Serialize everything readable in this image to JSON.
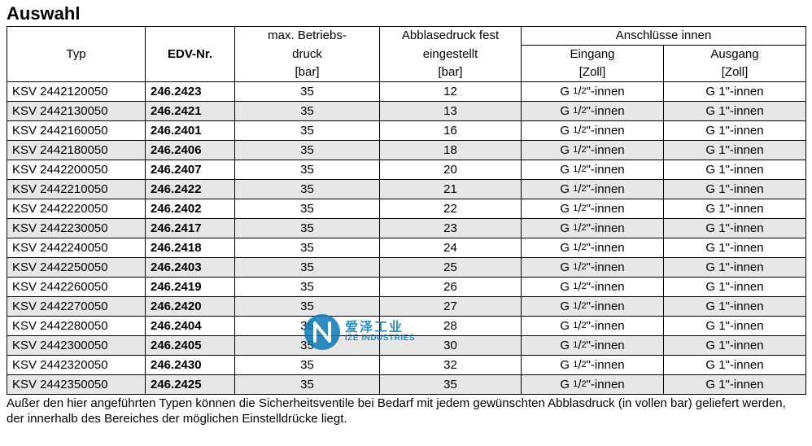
{
  "title": "Auswahl",
  "header": {
    "typ": "Typ",
    "edv": "EDV-Nr.",
    "druck_l1": "max. Betriebs-",
    "druck_l2": "druck",
    "abbl_l1": "Abblasedruck fest",
    "abbl_l2": "eingestellt",
    "ansch": "Anschlüsse innen",
    "eingang": "Eingang",
    "ausgang": "Ausgang",
    "unit_bar": "[bar]",
    "unit_zoll": "[Zoll]"
  },
  "conn_in_prefix": "G ",
  "conn_in_suffix": "\"-innen",
  "conn_out": "G 1\"-innen",
  "rows": [
    {
      "typ": "KSV 2442120050",
      "edv": "246.2423",
      "druck": "35",
      "abbl": "12"
    },
    {
      "typ": "KSV 2442130050",
      "edv": "246.2421",
      "druck": "35",
      "abbl": "13"
    },
    {
      "typ": "KSV 2442160050",
      "edv": "246.2401",
      "druck": "35",
      "abbl": "16"
    },
    {
      "typ": "KSV 2442180050",
      "edv": "246.2406",
      "druck": "35",
      "abbl": "18"
    },
    {
      "typ": "KSV 2442200050",
      "edv": "246.2407",
      "druck": "35",
      "abbl": "20"
    },
    {
      "typ": "KSV 2442210050",
      "edv": "246.2422",
      "druck": "35",
      "abbl": "21"
    },
    {
      "typ": "KSV 2442220050",
      "edv": "246.2402",
      "druck": "35",
      "abbl": "22"
    },
    {
      "typ": "KSV 2442230050",
      "edv": "246.2417",
      "druck": "35",
      "abbl": "23"
    },
    {
      "typ": "KSV 2442240050",
      "edv": "246.2418",
      "druck": "35",
      "abbl": "24"
    },
    {
      "typ": "KSV 2442250050",
      "edv": "246.2403",
      "druck": "35",
      "abbl": "25"
    },
    {
      "typ": "KSV 2442260050",
      "edv": "246.2419",
      "druck": "35",
      "abbl": "26"
    },
    {
      "typ": "KSV 2442270050",
      "edv": "246.2420",
      "druck": "35",
      "abbl": "27"
    },
    {
      "typ": "KSV 2442280050",
      "edv": "246.2404",
      "druck": "35",
      "abbl": "28"
    },
    {
      "typ": "KSV 2442300050",
      "edv": "246.2405",
      "druck": "35",
      "abbl": "30"
    },
    {
      "typ": "KSV 2442320050",
      "edv": "246.2430",
      "druck": "35",
      "abbl": "32"
    },
    {
      "typ": "KSV 2442350050",
      "edv": "246.2425",
      "druck": "35",
      "abbl": "35"
    }
  ],
  "footer": "Außer den hier angeführten Typen können die Sicherheitsventile bei Bedarf mit jedem gewünschten Abblasdruck (in vollen bar) geliefert werden, der innerhalb des Bereiches der möglichen Einstelldrücke liegt.",
  "watermark": {
    "cn": "爱泽工业",
    "en": "IZE INDUSTRIES"
  },
  "style": {
    "alt_row_bg": "#e7e7e7",
    "border_color": "#000000",
    "font_size_body": 15,
    "font_size_title": 22,
    "watermark_color": "#0a78b6"
  }
}
